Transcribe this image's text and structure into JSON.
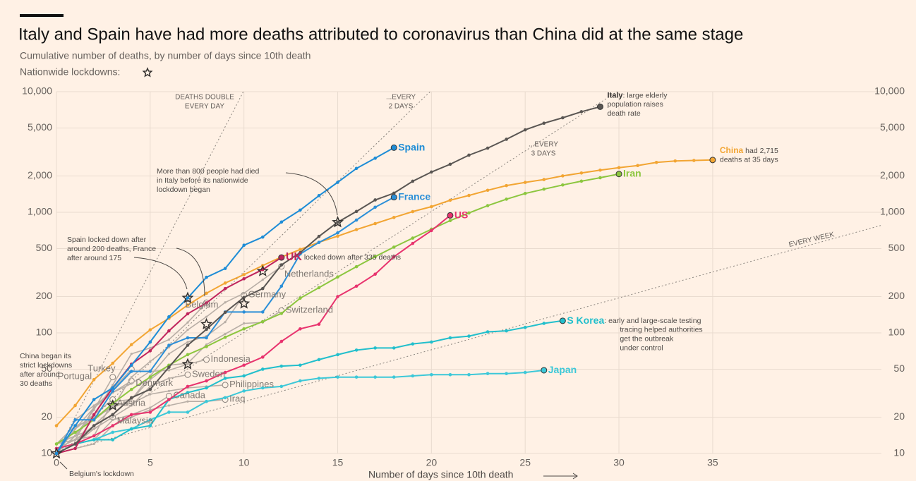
{
  "chart_data": {
    "type": "line",
    "log_y": true,
    "grid": true,
    "title": "Italy and Spain have had more deaths attributed to coronavirus than China did at the same stage",
    "subtitle": "Cumulative number of deaths, by number of days since 10th death",
    "lockdown_legend": "Nationwide lockdowns:",
    "x_label": "Number of days since 10th death",
    "xlim": [
      0,
      44
    ],
    "xticks": [
      0,
      5,
      10,
      15,
      20,
      25,
      30,
      35
    ],
    "ylim": [
      10,
      10000
    ],
    "yticks": [
      10,
      20,
      50,
      100,
      200,
      500,
      {
        "value": 1000,
        "label": "1,000"
      },
      {
        "value": 2000,
        "label": "2,000"
      },
      {
        "value": 5000,
        "label": "5,000"
      },
      {
        "value": 10000,
        "label": "10,000"
      }
    ],
    "series": [
      {
        "name": "Turkey",
        "color": "#b8aea6",
        "values": [
          10,
          16,
          24,
          34,
          50
        ]
      },
      {
        "name": "Portugal",
        "color": "#b8aea6",
        "values": [
          12,
          14,
          23,
          43
        ]
      },
      {
        "name": "Austria",
        "color": "#b8aea6",
        "values": [
          10,
          16,
          21,
          28
        ]
      },
      {
        "name": "Malaysia",
        "color": "#b8aea6",
        "values": [
          10,
          14,
          16,
          20
        ]
      },
      {
        "name": "Denmark",
        "color": "#b8aea6",
        "values": [
          11,
          13,
          24,
          32,
          40
        ]
      },
      {
        "name": "Canada",
        "color": "#b8aea6",
        "values": [
          10,
          12,
          13,
          19,
          21,
          24,
          30
        ]
      },
      {
        "name": "Iraq",
        "color": "#b8aea6",
        "values": [
          10,
          11,
          12,
          17,
          20,
          23,
          25,
          27,
          27,
          28
        ]
      },
      {
        "name": "Philippines",
        "color": "#b8aea6",
        "values": [
          12,
          17,
          19,
          25,
          26,
          31,
          33,
          35,
          36,
          37
        ]
      },
      {
        "name": "Sweden",
        "color": "#b8aea6",
        "values": [
          10,
          12,
          16,
          20,
          25,
          36,
          42,
          45
        ]
      },
      {
        "name": "Indonesia",
        "color": "#b8aea6",
        "values": [
          10,
          19,
          25,
          32,
          38,
          48,
          49,
          55,
          60
        ]
      },
      {
        "name": "Belgium",
        "color": "#b8aea6",
        "values": [
          10,
          14,
          21,
          37,
          67,
          75,
          88,
          122,
          178
        ]
      },
      {
        "name": "Germany",
        "color": "#b8aea6",
        "values": [
          12,
          13,
          17,
          24,
          28,
          44,
          67,
          84,
          94,
          123,
          206
        ]
      },
      {
        "name": "Switzerland",
        "color": "#b8aea6",
        "values": [
          11,
          13,
          14,
          27,
          28,
          41,
          54,
          56,
          80,
          98,
          120,
          122,
          153
        ]
      },
      {
        "name": "Netherlands",
        "color": "#b8aea6",
        "values": [
          10,
          12,
          20,
          24,
          43,
          58,
          76,
          106,
          136,
          179,
          213,
          276,
          356
        ]
      },
      {
        "name": "Japan",
        "color": "#3cc8d8",
        "values": [
          10,
          12,
          13,
          15,
          16,
          19,
          22,
          22,
          27,
          29,
          33,
          35,
          36,
          40,
          42,
          43,
          43,
          43,
          43,
          44,
          45,
          45,
          45,
          46,
          46,
          47,
          49
        ]
      },
      {
        "name": "S Korea",
        "color": "#22bfcc",
        "values": [
          11,
          12,
          13,
          13,
          16,
          17,
          28,
          32,
          35,
          42,
          44,
          50,
          53,
          54,
          60,
          66,
          72,
          75,
          75,
          81,
          84,
          91,
          94,
          102,
          104,
          111,
          120,
          126
        ]
      },
      {
        "name": "Iran",
        "color": "#8cc63f",
        "values": [
          12,
          15,
          19,
          26,
          34,
          43,
          54,
          66,
          77,
          92,
          108,
          124,
          145,
          194,
          237,
          291,
          354,
          429,
          514,
          611,
          724,
          853,
          988,
          1135,
          1284,
          1433,
          1556,
          1685,
          1812,
          1934,
          2077
        ]
      },
      {
        "name": "China",
        "color": "#f2a533",
        "values": [
          17,
          25,
          41,
          56,
          80,
          106,
          132,
          170,
          213,
          259,
          304,
          362,
          426,
          492,
          564,
          634,
          719,
          806,
          906,
          1013,
          1113,
          1259,
          1380,
          1523,
          1665,
          1770,
          1868,
          2004,
          2118,
          2236,
          2345,
          2442,
          2592,
          2663,
          2690,
          2715
        ]
      },
      {
        "name": "US",
        "color": "#e8336e",
        "values": [
          11,
          12,
          14,
          17,
          21,
          22,
          28,
          36,
          40,
          47,
          54,
          63,
          85,
          108,
          118,
          200,
          244,
          307,
          427,
          552,
          706,
          942
        ]
      },
      {
        "name": "UK",
        "color": "#c0245c",
        "values": [
          10,
          11,
          21,
          35,
          55,
          71,
          104,
          144,
          177,
          233,
          281,
          335,
          422
        ]
      },
      {
        "name": "France",
        "color": "#2b8fd8",
        "values": [
          10,
          19,
          19,
          33,
          48,
          48,
          79,
          91,
          91,
          149,
          149,
          149,
          244,
          451,
          563,
          676,
          862,
          1102,
          1333
        ]
      },
      {
        "name": "Italy",
        "color": "#5a5653",
        "values": [
          10,
          12,
          17,
          21,
          29,
          34,
          52,
          79,
          107,
          148,
          197,
          233,
          366,
          463,
          631,
          827,
          1016,
          1266,
          1441,
          1809,
          2158,
          2503,
          2978,
          3405,
          4032,
          4825,
          5476,
          6077,
          6820,
          7503
        ]
      },
      {
        "name": "Spain",
        "color": "#1d8cd6",
        "values": [
          10,
          17,
          28,
          35,
          54,
          84,
          136,
          195,
          289,
          342,
          533,
          623,
          830,
          1043,
          1375,
          1772,
          2311,
          2808,
          3434
        ]
      }
    ],
    "lockdowns": [
      {
        "x": 0,
        "y": 10
      },
      {
        "x": 3,
        "y": 25
      },
      {
        "x": 7,
        "y": 55
      },
      {
        "x": 7,
        "y": 195
      },
      {
        "x": 8,
        "y": 118
      },
      {
        "x": 10,
        "y": 175
      },
      {
        "x": 11,
        "y": 325
      },
      {
        "x": 15,
        "y": 827
      }
    ],
    "reference_lines": [
      {
        "doubling_days": 1,
        "label": [
          "DEATHS DOUBLE",
          "EVERY DAY"
        ]
      },
      {
        "doubling_days": 2,
        "label": [
          "...EVERY",
          "2 DAYS"
        ]
      },
      {
        "doubling_days": 3,
        "label": [
          "...EVERY",
          "3 DAYS"
        ]
      },
      {
        "doubling_days": 7,
        "label": [
          "EVERY WEEK"
        ]
      }
    ],
    "series_notes": [
      {
        "series": 21,
        "text": [
          ": large elderly",
          "population raises",
          "death rate"
        ]
      },
      {
        "series": 17,
        "text": [
          " had 2,715",
          "deaths at 35 days"
        ]
      },
      {
        "series": 15,
        "text": [
          ": early and large-scale testing",
          "tracing helped authorities",
          "get the outbreak",
          "under control"
        ]
      },
      {
        "series": 19,
        "text": [
          " locked down after 335 deaths"
        ]
      }
    ],
    "annotations": [
      {
        "text": [
          "More than 800 people had died",
          "in Italy before its nationwide",
          "lockdown began"
        ]
      },
      {
        "text": [
          "Spain locked down after",
          "around 200 deaths, France",
          "after around 175"
        ]
      },
      {
        "text": [
          "China began its",
          "strict lockdowns",
          "after around",
          "30 deaths"
        ]
      },
      {
        "text": [
          "Belgium's lockdown"
        ]
      }
    ]
  }
}
